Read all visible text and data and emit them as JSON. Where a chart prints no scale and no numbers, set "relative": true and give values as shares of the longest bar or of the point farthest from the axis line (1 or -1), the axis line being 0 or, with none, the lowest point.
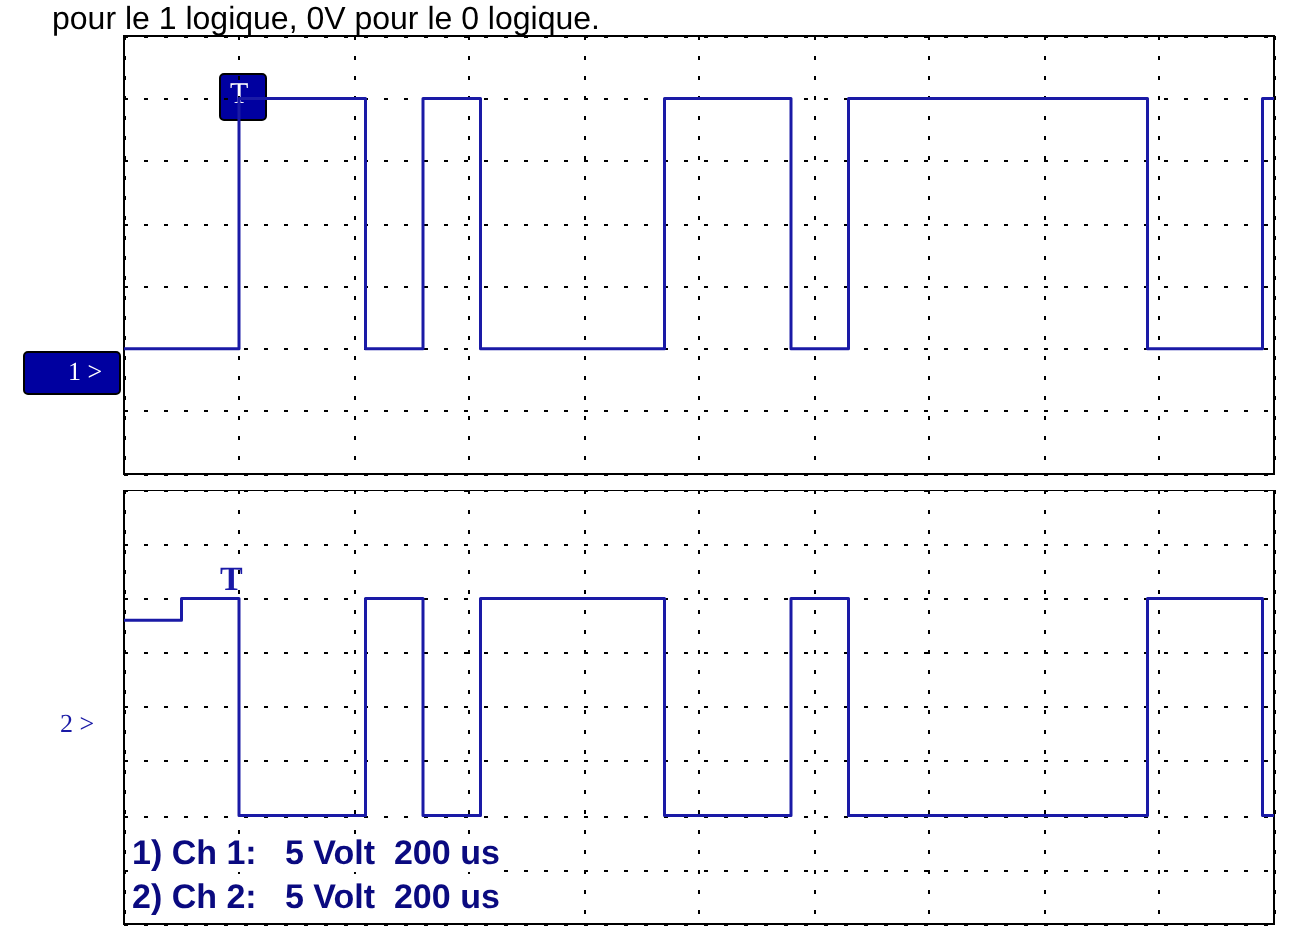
{
  "chart_data": [
    {
      "type": "step",
      "relative": true,
      "grid": true,
      "annotations": [
        "pour le 1 logique, 0V pour le 0 logique.",
        "T",
        "1 >"
      ],
      "categories": [
        null,
        null,
        null,
        null,
        null,
        null,
        null,
        null,
        null,
        null,
        null,
        null,
        null,
        null,
        null,
        null,
        null,
        null,
        null,
        null,
        null,
        null,
        null,
        null,
        null,
        null,
        null,
        null,
        null,
        null,
        null,
        null,
        null,
        null,
        null,
        null,
        null,
        null,
        null,
        null,
        null,
        null,
        null,
        null,
        null,
        null,
        null,
        null,
        null,
        null,
        null,
        null,
        null,
        null,
        null,
        null,
        null,
        null,
        null,
        null,
        null,
        null,
        null,
        null,
        null,
        null,
        null,
        null,
        null,
        null,
        null,
        null,
        null,
        null,
        null,
        null,
        null,
        null,
        null,
        null,
        null,
        null,
        null,
        null,
        null,
        null,
        null,
        null,
        null,
        null,
        null,
        null,
        null,
        null,
        null,
        null,
        null,
        null,
        null,
        null,
        null
      ],
      "series": [
        {
          "color": "#1a1aa6",
          "values": [
            0,
            0,
            0,
            0,
            0,
            0,
            0,
            0,
            0,
            0,
            1,
            1,
            1,
            1,
            1,
            1,
            1,
            1,
            1,
            1,
            1,
            0,
            0,
            0,
            0,
            0,
            1,
            1,
            1,
            1,
            1,
            0,
            0,
            0,
            0,
            0,
            0,
            0,
            0,
            0,
            0,
            0,
            0,
            0,
            0,
            0,
            0,
            1,
            1,
            1,
            1,
            1,
            1,
            1,
            1,
            1,
            1,
            1,
            0,
            0,
            0,
            0,
            0,
            1,
            1,
            1,
            1,
            1,
            1,
            1,
            1,
            1,
            1,
            1,
            1,
            1,
            1,
            1,
            1,
            1,
            1,
            1,
            1,
            1,
            1,
            1,
            1,
            1,
            1,
            0,
            0,
            0,
            0,
            0,
            0,
            0,
            0,
            0,
            0,
            1,
            1
          ]
        }
      ]
    },
    {
      "type": "step",
      "relative": true,
      "grid": true,
      "annotations": [
        "T",
        "2 >",
        "1) Ch 1:   5 Volt  200 us",
        "2) Ch 2:   5 Volt  200 us"
      ],
      "categories": [
        null,
        null,
        null,
        null,
        null,
        null,
        null,
        null,
        null,
        null,
        null,
        null,
        null,
        null,
        null,
        null,
        null,
        null,
        null,
        null,
        null,
        null,
        null,
        null,
        null,
        null,
        null,
        null,
        null,
        null,
        null,
        null,
        null,
        null,
        null,
        null,
        null,
        null,
        null,
        null,
        null,
        null,
        null,
        null,
        null,
        null,
        null,
        null,
        null,
        null,
        null,
        null,
        null,
        null,
        null,
        null,
        null,
        null,
        null,
        null,
        null,
        null,
        null,
        null,
        null,
        null,
        null,
        null,
        null,
        null,
        null,
        null,
        null,
        null,
        null,
        null,
        null,
        null,
        null,
        null,
        null,
        null,
        null,
        null,
        null,
        null,
        null,
        null,
        null,
        null,
        null,
        null,
        null,
        null,
        null,
        null,
        null,
        null,
        null,
        null,
        null
      ],
      "series": [
        {
          "color": "#1a1aa6",
          "values": [
            0.9,
            0.9,
            0.9,
            0.9,
            0.9,
            1,
            1,
            1,
            1,
            1,
            0,
            0,
            0,
            0,
            0,
            0,
            0,
            0,
            0,
            0,
            0,
            1,
            1,
            1,
            1,
            1,
            0,
            0,
            0,
            0,
            0,
            1,
            1,
            1,
            1,
            1,
            1,
            1,
            1,
            1,
            1,
            1,
            1,
            1,
            1,
            1,
            1,
            0,
            0,
            0,
            0,
            0,
            0,
            0,
            0,
            0,
            0,
            0,
            1,
            1,
            1,
            1,
            1,
            0,
            0,
            0,
            0,
            0,
            0,
            0,
            0,
            0,
            0,
            0,
            0,
            0,
            0,
            0,
            0,
            0,
            0,
            0,
            0,
            0,
            0,
            0,
            0,
            0,
            0,
            1,
            1,
            1,
            1,
            1,
            1,
            1,
            1,
            1,
            1,
            0,
            0
          ]
        }
      ]
    }
  ]
}
